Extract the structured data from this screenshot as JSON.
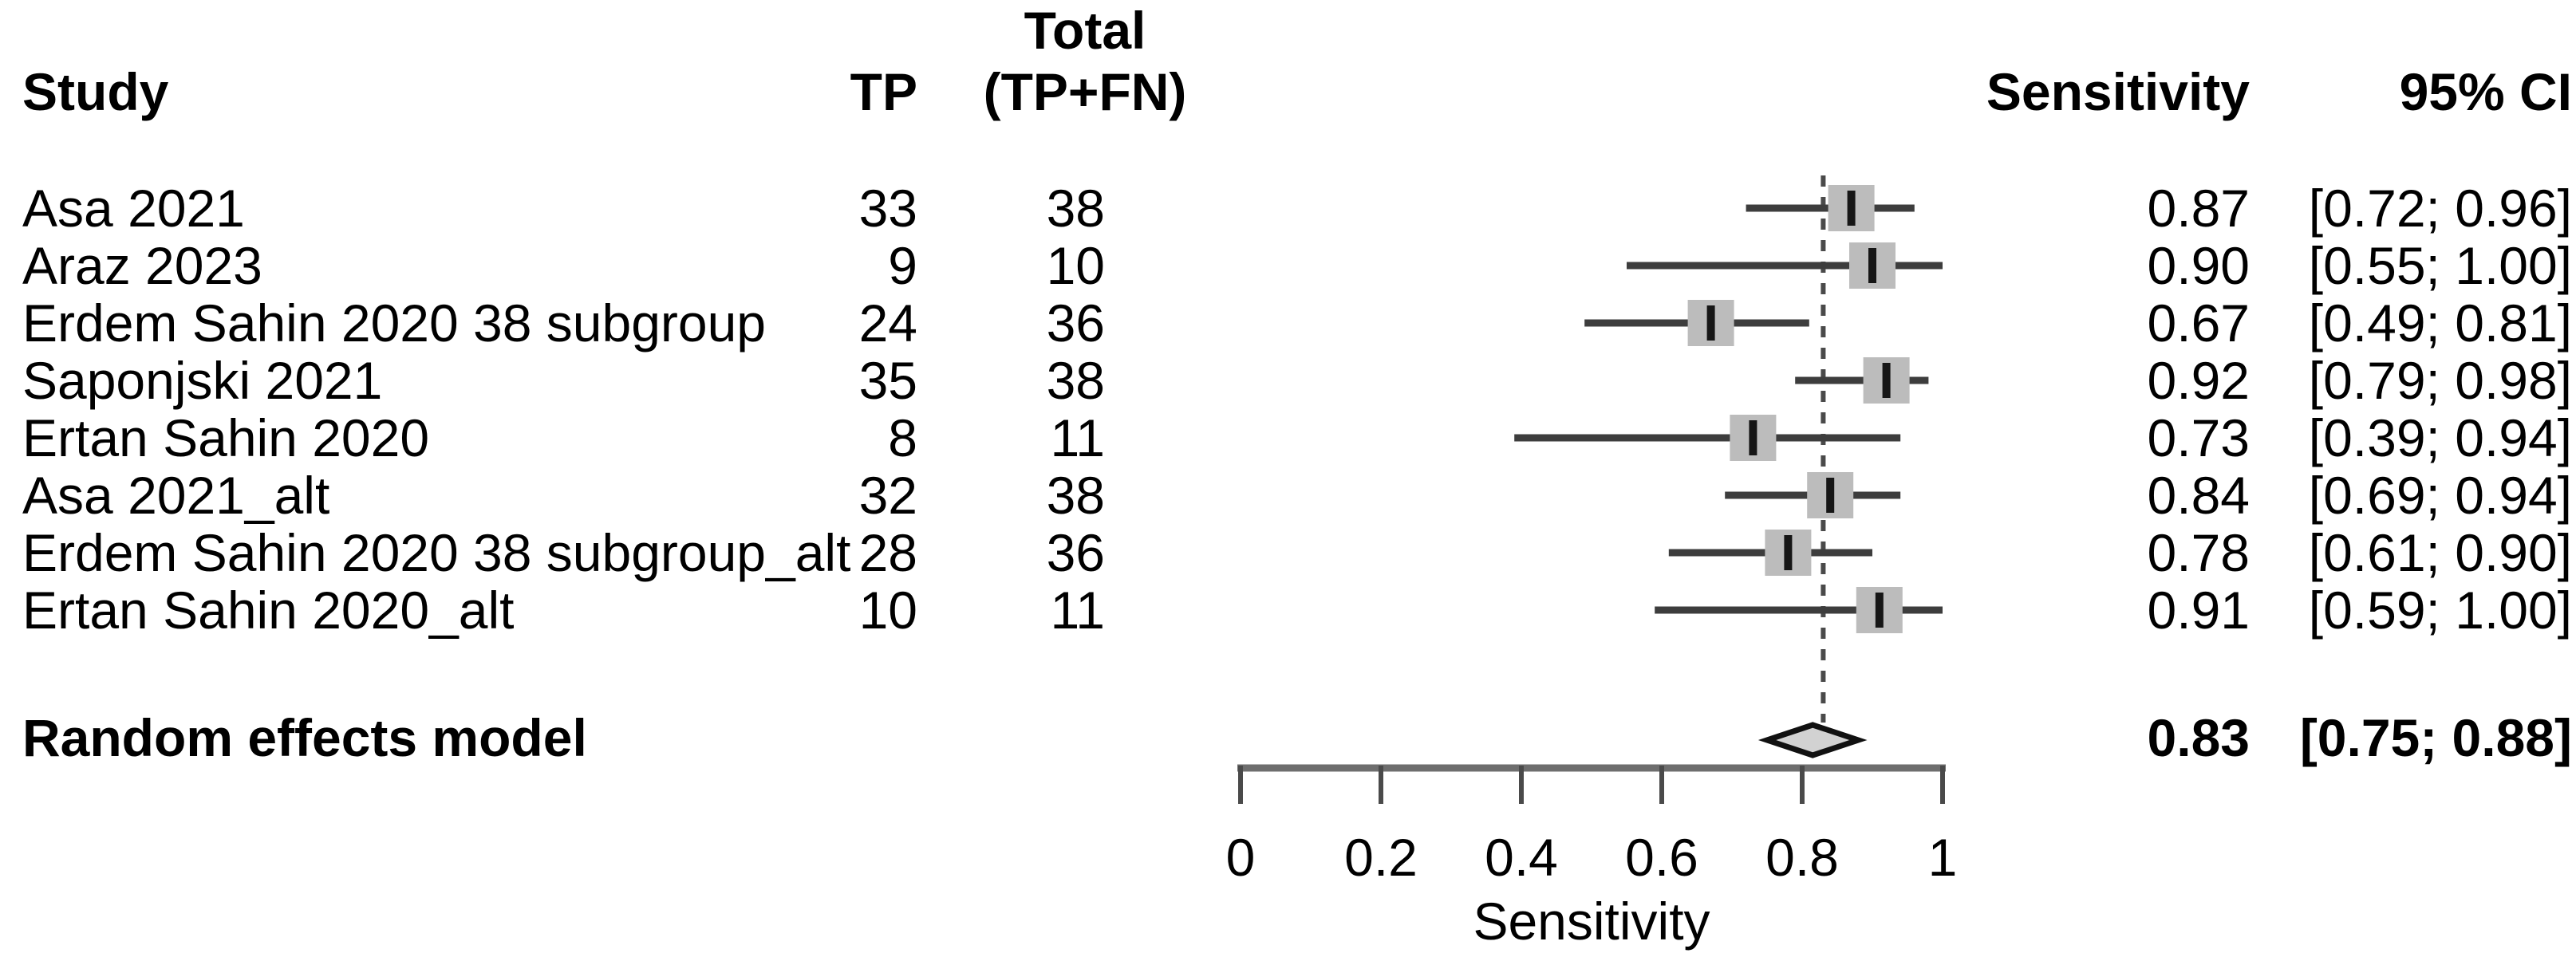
{
  "table": {
    "headers": {
      "study": "Study",
      "tp": "TP",
      "total_line1": "Total",
      "total_line2": "(TP+FN)",
      "sensitivity": "Sensitivity",
      "ci": "95% CI"
    }
  },
  "chart_data": {
    "type": "forest",
    "xlabel": "Sensitivity",
    "xlim": [
      0,
      1
    ],
    "x_ticks": [
      0,
      0.2,
      0.4,
      0.6,
      0.8,
      1
    ],
    "x_tick_labels": [
      "0",
      "0.2",
      "0.4",
      "0.6",
      "0.8",
      "1"
    ],
    "reference_line": 0.83,
    "studies": [
      {
        "label": "Asa 2021",
        "tp": "33",
        "total": "38",
        "estimate": 0.87,
        "ci_low": 0.72,
        "ci_high": 0.96,
        "sens_text": "0.87",
        "ci_text": "[0.72; 0.96]"
      },
      {
        "label": "Araz 2023",
        "tp": "9",
        "total": "10",
        "estimate": 0.9,
        "ci_low": 0.55,
        "ci_high": 1.0,
        "sens_text": "0.90",
        "ci_text": "[0.55; 1.00]"
      },
      {
        "label": "Erdem Sahin 2020 38 subgroup",
        "tp": "24",
        "total": "36",
        "estimate": 0.67,
        "ci_low": 0.49,
        "ci_high": 0.81,
        "sens_text": "0.67",
        "ci_text": "[0.49; 0.81]"
      },
      {
        "label": "Saponjski 2021",
        "tp": "35",
        "total": "38",
        "estimate": 0.92,
        "ci_low": 0.79,
        "ci_high": 0.98,
        "sens_text": "0.92",
        "ci_text": "[0.79; 0.98]"
      },
      {
        "label": "Ertan Sahin 2020",
        "tp": "8",
        "total": "11",
        "estimate": 0.73,
        "ci_low": 0.39,
        "ci_high": 0.94,
        "sens_text": "0.73",
        "ci_text": "[0.39; 0.94]"
      },
      {
        "label": "Asa 2021_alt",
        "tp": "32",
        "total": "38",
        "estimate": 0.84,
        "ci_low": 0.69,
        "ci_high": 0.94,
        "sens_text": "0.84",
        "ci_text": "[0.69; 0.94]"
      },
      {
        "label": "Erdem Sahin 2020 38 subgroup_alt",
        "tp": "28",
        "total": "36",
        "estimate": 0.78,
        "ci_low": 0.61,
        "ci_high": 0.9,
        "sens_text": "0.78",
        "ci_text": "[0.61; 0.90]"
      },
      {
        "label": "Ertan Sahin 2020_alt",
        "tp": "10",
        "total": "11",
        "estimate": 0.91,
        "ci_low": 0.59,
        "ci_high": 1.0,
        "sens_text": "0.91",
        "ci_text": "[0.59; 1.00]"
      }
    ],
    "summary": {
      "label": "Random effects model",
      "estimate": 0.83,
      "ci_low": 0.75,
      "ci_high": 0.88,
      "sens_text": "0.83",
      "ci_text": "[0.75; 0.88]"
    }
  },
  "colors": {
    "text": "#000000",
    "ci_line": "#3d3d3d",
    "square_fill": "#bcbcbc",
    "point_tick": "#161616",
    "dashed_line": "#4a4a4a",
    "axis_line": "#6e6e6e",
    "axis_tick": "#4a4a4a",
    "diamond_fill": "#d2d2d2",
    "diamond_stroke": "#111111"
  }
}
